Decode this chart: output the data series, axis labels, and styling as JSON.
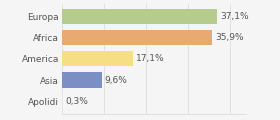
{
  "categories": [
    "Europa",
    "Africa",
    "America",
    "Asia",
    "Apolidi"
  ],
  "values": [
    37.1,
    35.9,
    17.1,
    9.6,
    0.3
  ],
  "labels": [
    "37,1%",
    "35,9%",
    "17,1%",
    "9,6%",
    "0,3%"
  ],
  "bar_colors": [
    "#b5cc8e",
    "#e8aa72",
    "#f5de84",
    "#7b8fc4",
    "#e8e8e8"
  ],
  "background_color": "#f5f5f5",
  "xlim": [
    0,
    44
  ],
  "bar_height": 0.72,
  "label_fontsize": 6.5,
  "tick_fontsize": 6.5,
  "text_color": "#555555",
  "grid_color": "#dddddd",
  "grid_ticks": [
    0,
    10,
    20,
    30,
    40
  ]
}
